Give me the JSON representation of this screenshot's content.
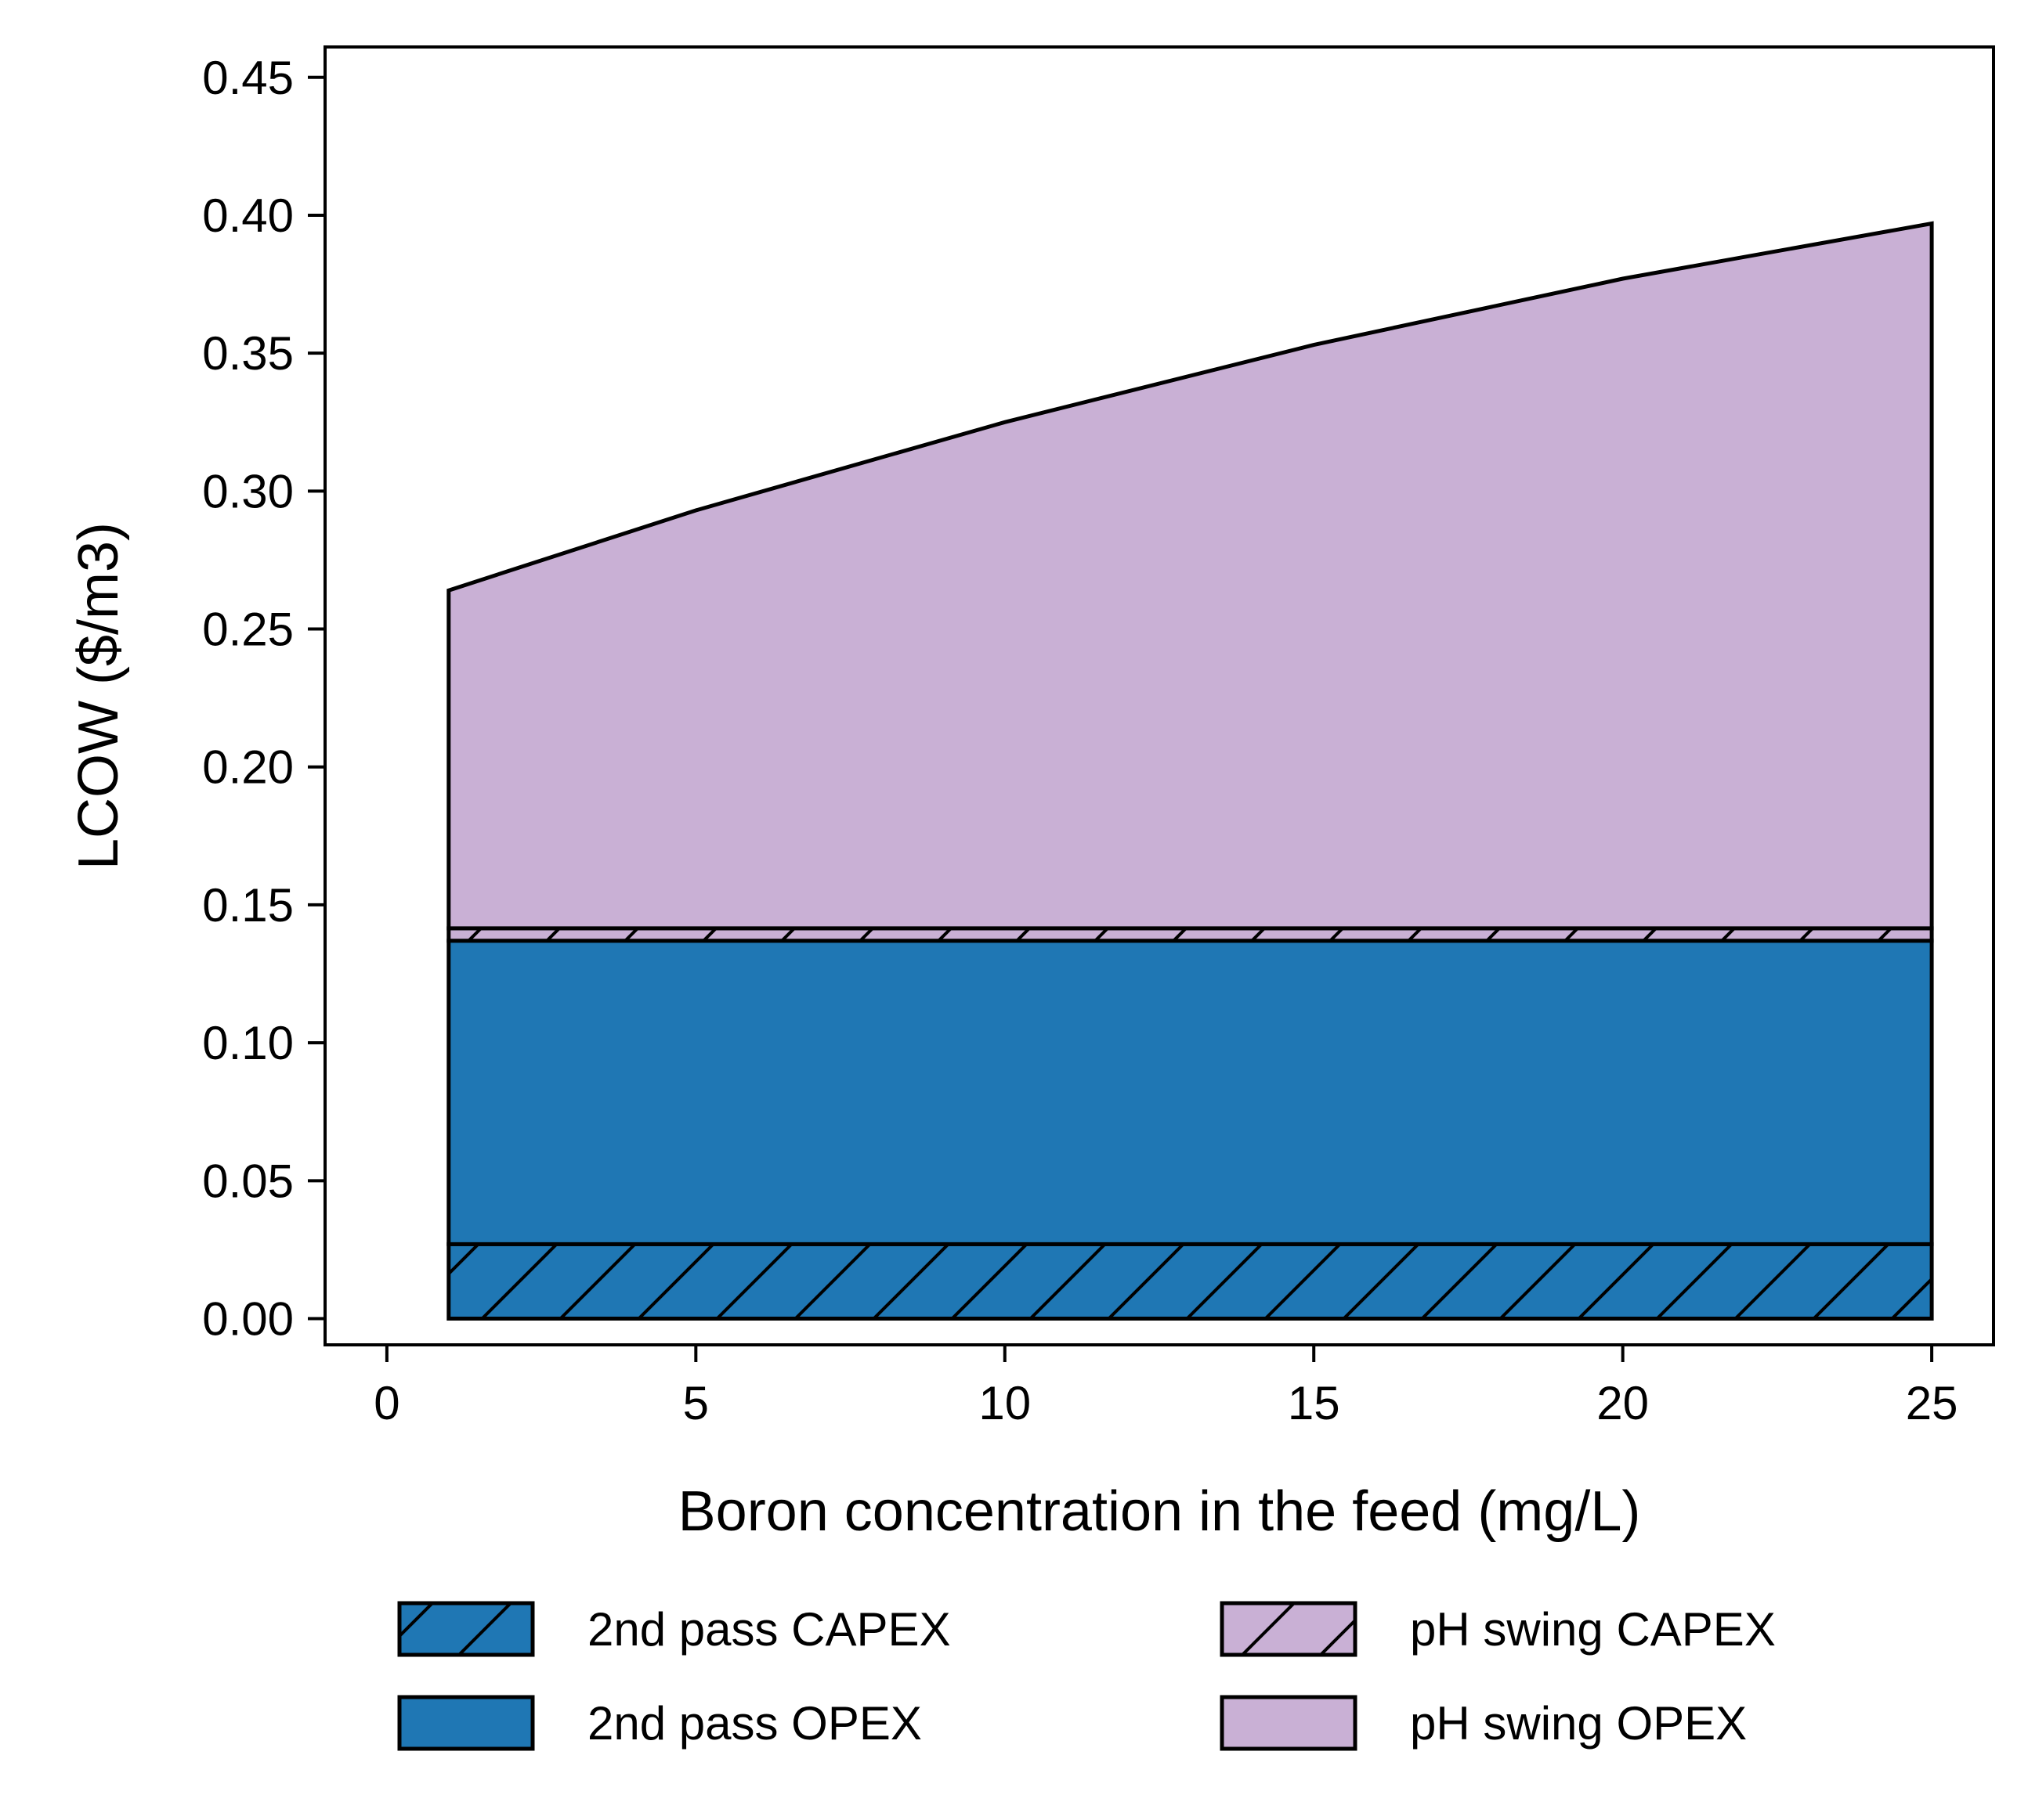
{
  "chart_data": {
    "type": "area",
    "stacked": true,
    "xlabel": "Boron concentration in the feed (mg/L)",
    "ylabel": "LCOW ($/m3)",
    "xlim": [
      -1,
      26
    ],
    "ylim": [
      -0.0095,
      0.461
    ],
    "xticks": [
      0,
      5,
      10,
      15,
      20,
      25
    ],
    "yticks": [
      0.0,
      0.05,
      0.1,
      0.15,
      0.2,
      0.25,
      0.3,
      0.35,
      0.4,
      0.45
    ],
    "xtick_labels": [
      "0",
      "5",
      "10",
      "15",
      "20",
      "25"
    ],
    "ytick_labels": [
      "0.00",
      "0.05",
      "0.10",
      "0.15",
      "0.20",
      "0.25",
      "0.30",
      "0.35",
      "0.40",
      "0.45"
    ],
    "grid": false,
    "legend_position": "below plot, two columns",
    "x": [
      1,
      5,
      10,
      15,
      20,
      25
    ],
    "series": [
      {
        "name": "2nd pass CAPEX",
        "color": "#1f77b4",
        "hatch": "/",
        "values": [
          0.027,
          0.027,
          0.027,
          0.027,
          0.027,
          0.027
        ]
      },
      {
        "name": "2nd pass OPEX",
        "color": "#1f77b4",
        "hatch": "",
        "values": [
          0.11,
          0.11,
          0.11,
          0.11,
          0.11,
          0.11
        ]
      },
      {
        "name": "pH swing CAPEX",
        "color": "#c9b0d5",
        "hatch": "/",
        "values": [
          0.0045,
          0.0045,
          0.0045,
          0.0045,
          0.0045,
          0.0045
        ]
      },
      {
        "name": "pH swing OPEX",
        "color": "#c9b0d5",
        "hatch": "",
        "values": [
          0.1225,
          0.1515,
          0.1835,
          0.2115,
          0.2355,
          0.2555
        ]
      }
    ]
  }
}
